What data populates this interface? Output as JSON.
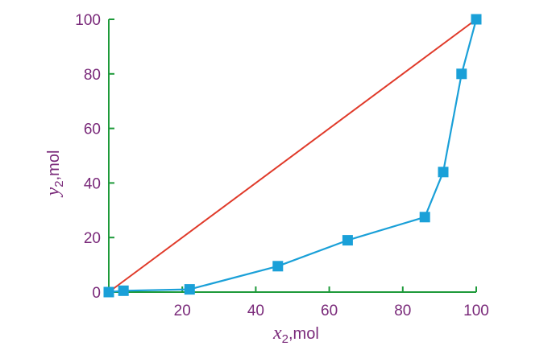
{
  "chart_data": {
    "type": "line",
    "xlim": [
      0,
      100
    ],
    "ylim": [
      0,
      100
    ],
    "x_ticks": [
      "20",
      "40",
      "60",
      "80",
      "100"
    ],
    "y_ticks": [
      "0",
      "20",
      "40",
      "60",
      "80",
      "100"
    ],
    "xlabel": {
      "var": "x",
      "sub": "2",
      "unit": ",mol"
    },
    "ylabel": {
      "var": "y",
      "sub": "2",
      "unit": ",mol"
    },
    "grid": false,
    "series": [
      {
        "marker": "square",
        "color": "#1aa0d8",
        "points": [
          {
            "x": 0,
            "y": 0
          },
          {
            "x": 4,
            "y": 0.5
          },
          {
            "x": 22,
            "y": 1
          },
          {
            "x": 46,
            "y": 9.5
          },
          {
            "x": 65,
            "y": 19
          },
          {
            "x": 86,
            "y": 27.5
          },
          {
            "x": 91,
            "y": 44
          },
          {
            "x": 96,
            "y": 80
          },
          {
            "x": 100,
            "y": 100
          }
        ]
      },
      {
        "marker": "none",
        "color": "#e03a2a",
        "points": [
          {
            "x": 0,
            "y": 0
          },
          {
            "x": 100,
            "y": 100
          }
        ]
      }
    ]
  },
  "colors": {
    "axis": "#1e9a3a",
    "text": "#7a2a7a"
  }
}
